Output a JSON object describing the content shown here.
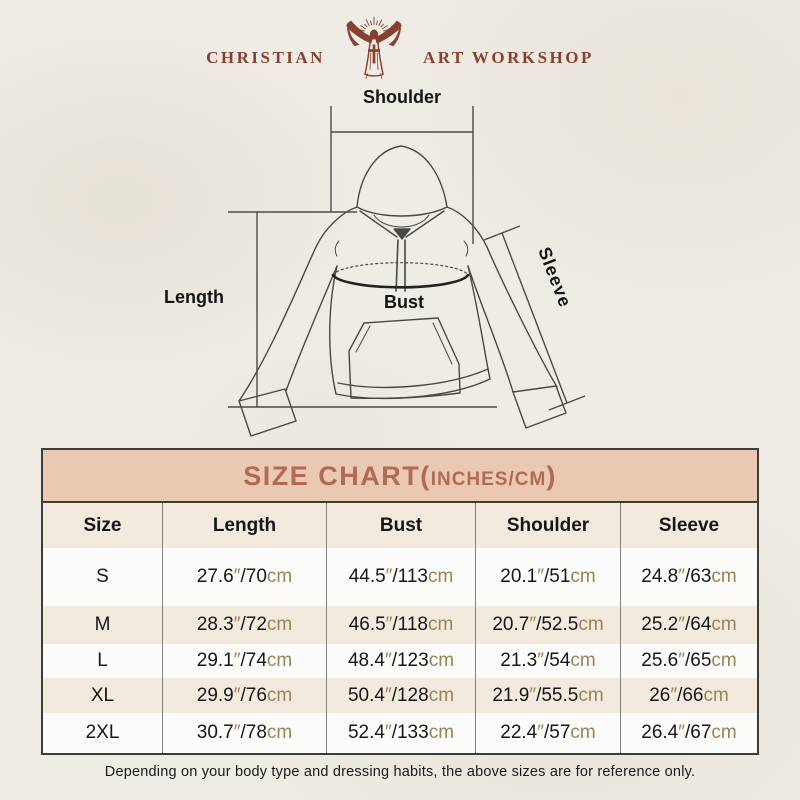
{
  "logo": {
    "text_left": "CHRISTIAN",
    "text_right": "ART WORKSHOP",
    "color": "#8A4031"
  },
  "diagram": {
    "labels": {
      "shoulder": "Shoulder",
      "length": "Length",
      "bust": "Bust",
      "sleeve": "Sleeve"
    }
  },
  "size_chart": {
    "title": {
      "main": "SIZE CHART",
      "paren_open": "(",
      "sub": "INCHES/CM",
      "paren_close": ")"
    },
    "columns": [
      "Size",
      "Length",
      "Bust",
      "Shoulder",
      "Sleeve"
    ],
    "units": {
      "inch_mark": "″",
      "separator": "/",
      "cm_suffix": "cm"
    },
    "rows": [
      {
        "size": "S",
        "measurements": [
          {
            "in": "27.6",
            "cm": "70"
          },
          {
            "in": "44.5",
            "cm": "113"
          },
          {
            "in": "20.1",
            "cm": "51"
          },
          {
            "in": "24.8",
            "cm": "63"
          }
        ]
      },
      {
        "size": "M",
        "measurements": [
          {
            "in": "28.3",
            "cm": "72"
          },
          {
            "in": "46.5",
            "cm": "118"
          },
          {
            "in": "20.7",
            "cm": "52.5"
          },
          {
            "in": "25.2",
            "cm": "64"
          }
        ]
      },
      {
        "size": "L",
        "measurements": [
          {
            "in": "29.1",
            "cm": "74"
          },
          {
            "in": "48.4",
            "cm": "123"
          },
          {
            "in": "21.3",
            "cm": "54"
          },
          {
            "in": "25.6",
            "cm": "65"
          }
        ]
      },
      {
        "size": "XL",
        "measurements": [
          {
            "in": "29.9",
            "cm": "76"
          },
          {
            "in": "50.4",
            "cm": "128"
          },
          {
            "in": "21.9",
            "cm": "55.5"
          },
          {
            "in": "26",
            "cm": "66"
          }
        ]
      },
      {
        "size": "2XL",
        "measurements": [
          {
            "in": "30.7",
            "cm": "78"
          },
          {
            "in": "52.4",
            "cm": "133"
          },
          {
            "in": "22.4",
            "cm": "57"
          },
          {
            "in": "26.4",
            "cm": "67"
          }
        ]
      }
    ],
    "colors": {
      "title_bg": "#EAC9B3",
      "title_text": "#B06A55",
      "alt_row_bg": "#F3EADE",
      "row_bg": "#FCFCFA",
      "unit_text": "#9B8356"
    }
  },
  "footer": {
    "note": "Depending on your body type and dressing habits, the above sizes are for reference only."
  }
}
